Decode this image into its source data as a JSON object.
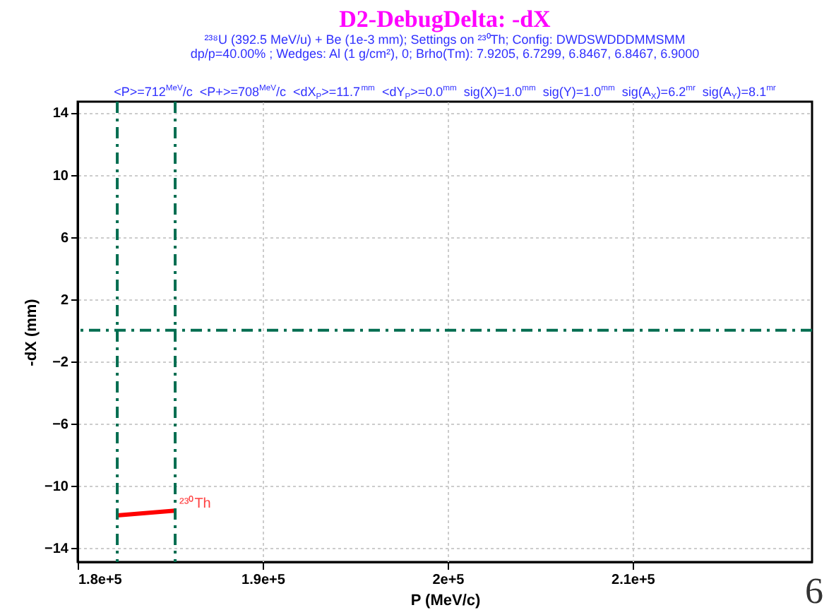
{
  "chart_data": {
    "type": "line",
    "title": "D2-DebugDelta:  -dX",
    "subtitle": [
      "²³⁸U (392.5 MeV/u) + Be (1e-3 mm);  Settings on ²³⁰Th;  Config: DWDSWDDDMMSMM",
      "dp/p=40.00% ; Wedges: Al (1 g/cm²), 0; Brho(Tm): 7.9205, 6.7299, 6.8467, 6.8467, 6.9000",
      "<P>=712$^{MeV}$/c  <P+>=708$^{MeV}$/c  <dX$_{P}$>=11.7$^{mm}$  <dY$_{P}$>=0.0$^{mm}$  sig(X)=1.0$^{mm}$  sig(Y)=1.0$^{mm}$  sig(A$_{X}$)=6.2$^{mr}$  sig(A$_{Y}$)=8.1$^{mr}$"
    ],
    "xlabel": "P (MeV/c)",
    "ylabel": "-dX (mm)",
    "xlim": [
      180000,
      219700
    ],
    "ylim": [
      -14.9,
      14.7
    ],
    "xticks": [
      {
        "value": 180000,
        "label": "1.8e+5"
      },
      {
        "value": 190000,
        "label": "1.9e+5"
      },
      {
        "value": 200000,
        "label": "2e+5"
      },
      {
        "value": 210000,
        "label": "2.1e+5"
      }
    ],
    "yticks": [
      -14,
      -10,
      -6,
      -2,
      2,
      6,
      10,
      14
    ],
    "grid": true,
    "marker": "none",
    "series": [
      {
        "color": "#ff0000",
        "x": [
          182140,
          185270
        ],
        "values": [
          -11.9,
          -11.6
        ]
      }
    ],
    "ref_lines": [
      {
        "axis": "x",
        "value": 182140,
        "color": "#006d50",
        "line_style": "dashed"
      },
      {
        "axis": "x",
        "value": 185270,
        "color": "#006d50",
        "line_style": "dashed"
      },
      {
        "axis": "y",
        "value": 0,
        "color": "#006d50",
        "line_style": "dashed"
      }
    ],
    "annotations": [
      {
        "text": "²³⁰Th",
        "x": 185270,
        "y": -11.6
      },
      "6"
    ]
  }
}
